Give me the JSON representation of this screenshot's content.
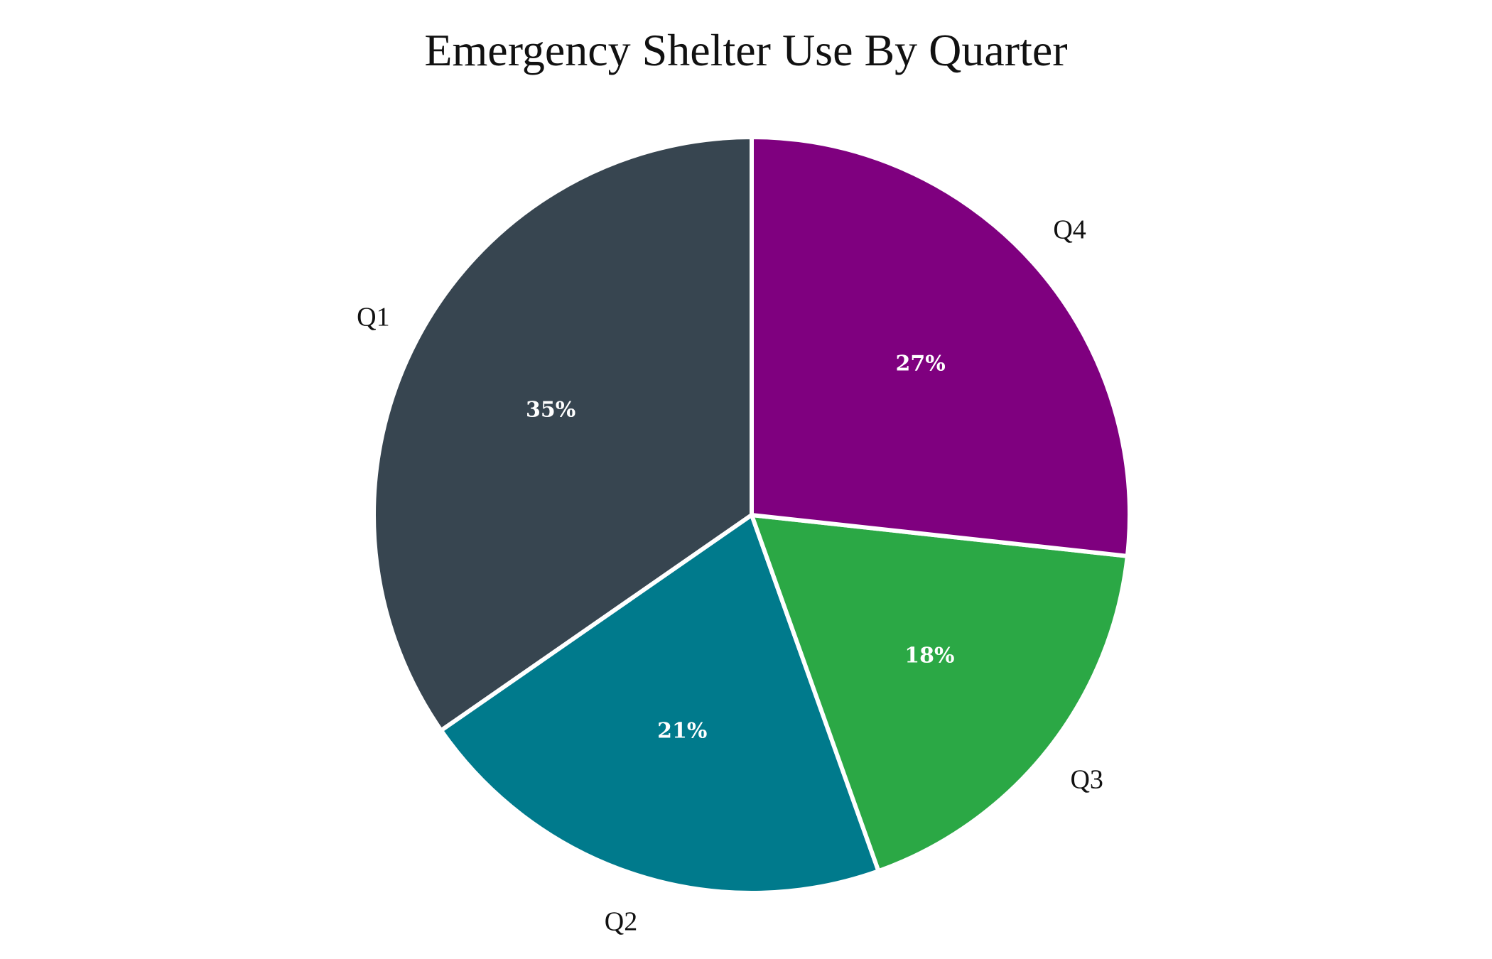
{
  "chart_data": {
    "type": "pie",
    "title": "Emergency Shelter Use By Quarter",
    "categories": [
      "Q1",
      "Q2",
      "Q3",
      "Q4"
    ],
    "values": [
      35,
      21,
      18,
      27
    ],
    "value_labels": [
      "35%",
      "21%",
      "18%",
      "27%"
    ],
    "colors": [
      "#374550",
      "#007A8C",
      "#2BA845",
      "#7F007F"
    ],
    "slice_border_color": "#FFFFFF",
    "start_direction": "top",
    "direction": "counterclockwise",
    "legend": "none"
  }
}
